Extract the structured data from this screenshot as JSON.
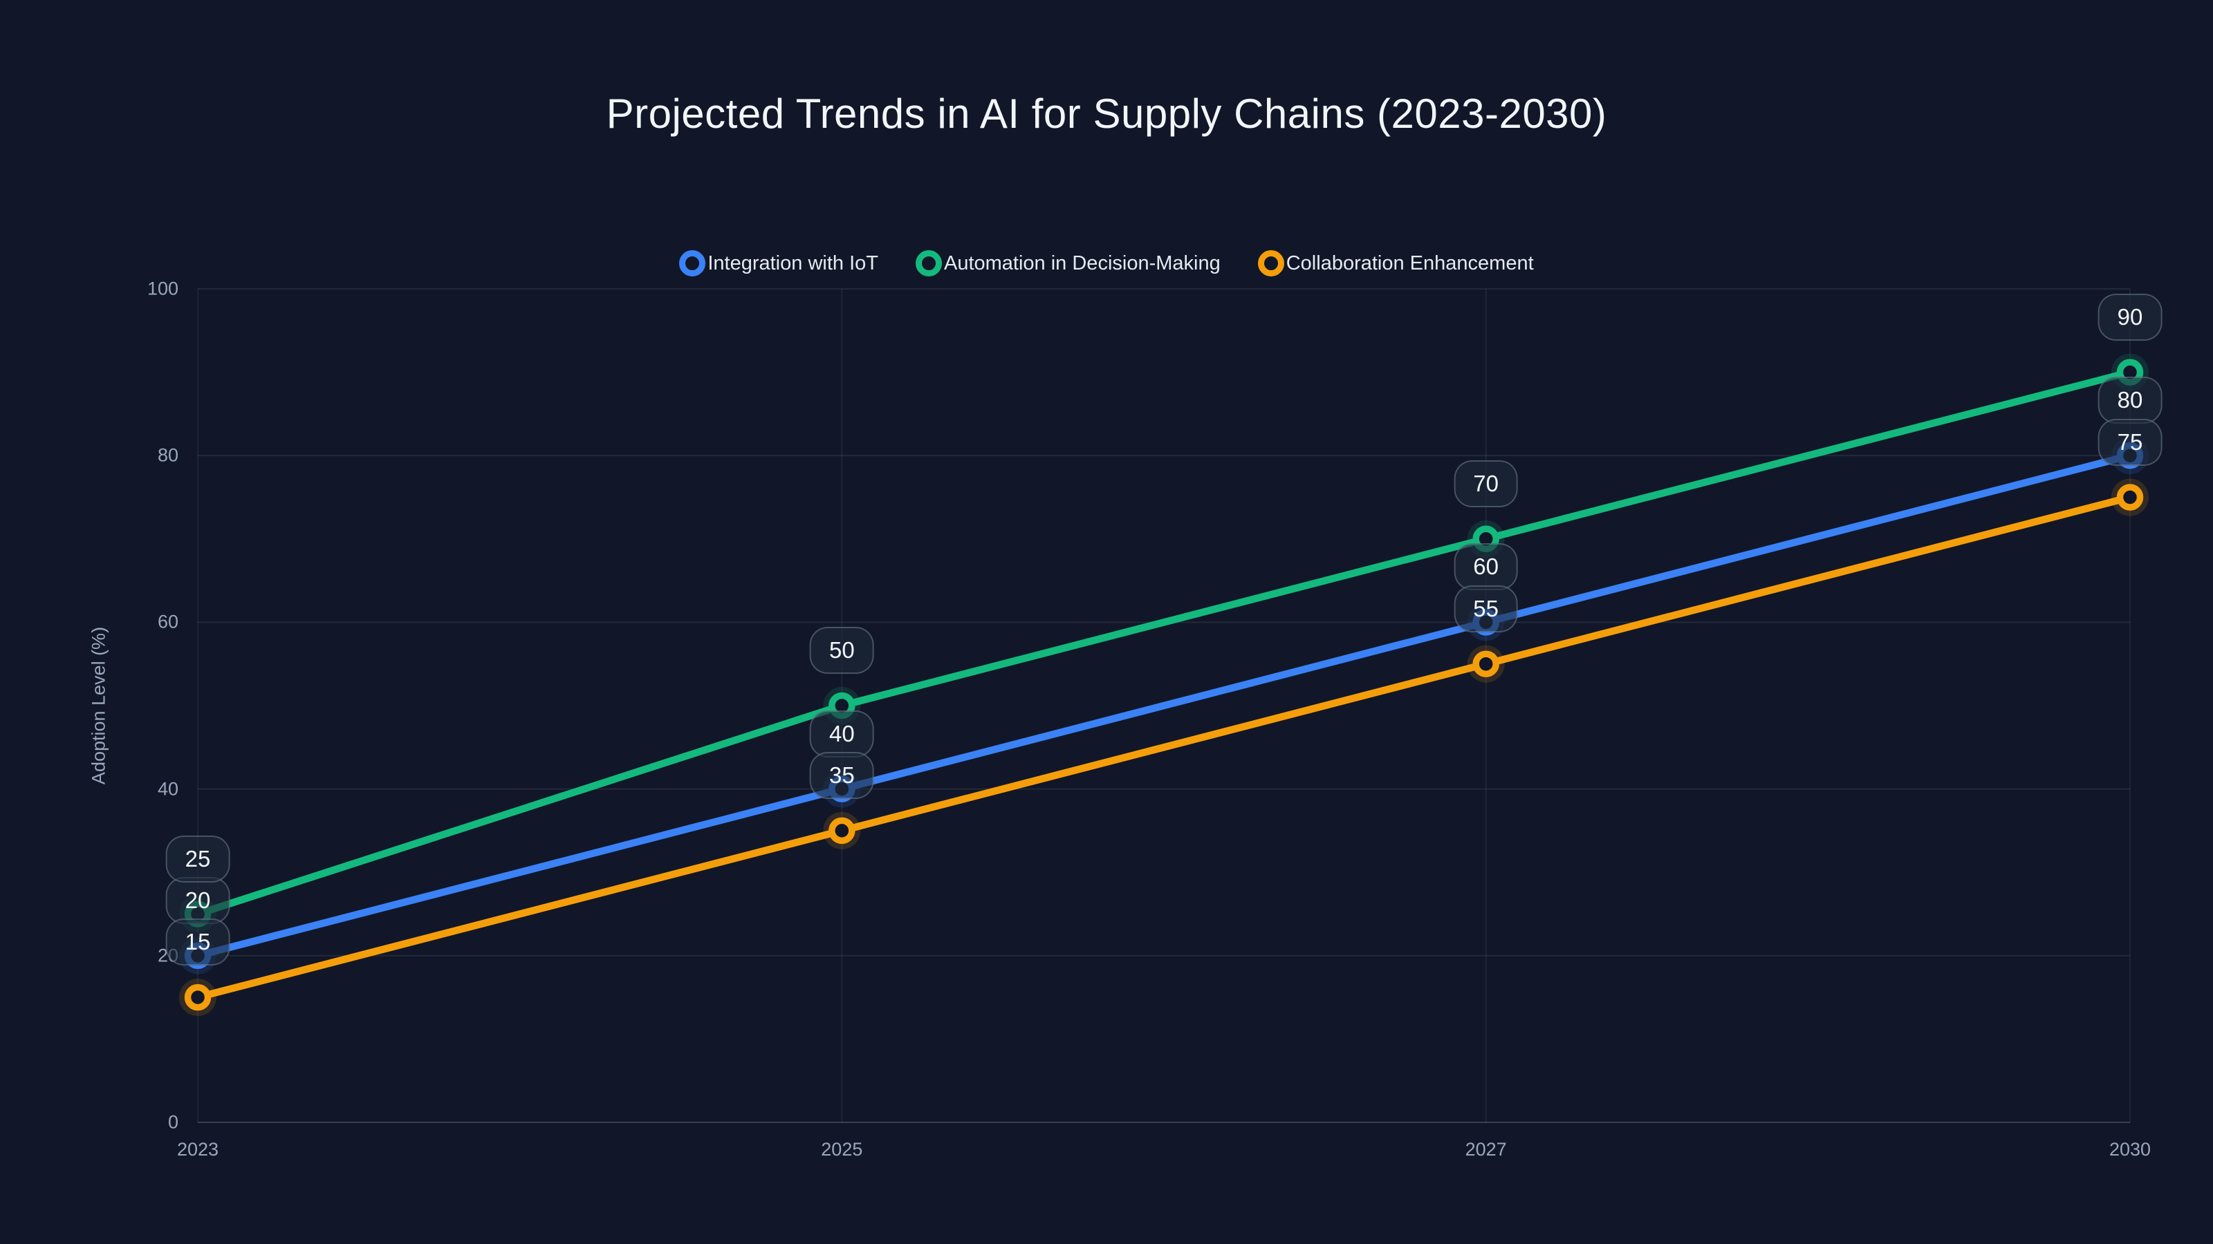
{
  "page": {
    "background_color": "#111728"
  },
  "chart_data": {
    "type": "line",
    "title": "Projected Trends in AI for Supply Chains (2023-2030)",
    "categories": [
      "2023",
      "2025",
      "2027",
      "2030"
    ],
    "series": [
      {
        "name": "Integration with IoT",
        "color": "#3b82f6",
        "values": [
          20,
          40,
          60,
          80
        ]
      },
      {
        "name": "Automation in Decision-Making",
        "color": "#14b97d",
        "values": [
          25,
          50,
          70,
          90
        ]
      },
      {
        "name": "Collaboration Enhancement",
        "color": "#f59e0b",
        "values": [
          15,
          35,
          55,
          75
        ]
      }
    ],
    "xlabel": "",
    "ylabel": "Adoption Level (%)",
    "ylim": [
      0,
      100
    ],
    "yticks": [
      0,
      20,
      40,
      60,
      80,
      100
    ],
    "grid": true,
    "legend_position": "top-center",
    "point_labels_visible": true,
    "marker_style": "ring"
  },
  "style": {
    "title_color": "#f2f5fa",
    "tick_label_color": "#9aa7bd",
    "axis_title_color": "#9aa7bd",
    "legend_text_color": "#e6eaf2",
    "grid_color": "rgba(148,163,184,0.13)",
    "vertical_grid_color": "rgba(148,163,184,0.10)",
    "axis_line_color": "rgba(148,163,184,0.30)",
    "badge_background": "rgba(30,41,59,0.60)",
    "badge_border_color": "rgba(148,163,184,0.38)",
    "badge_text_color": "#f4f7fb",
    "marker_fill": "#111728"
  }
}
